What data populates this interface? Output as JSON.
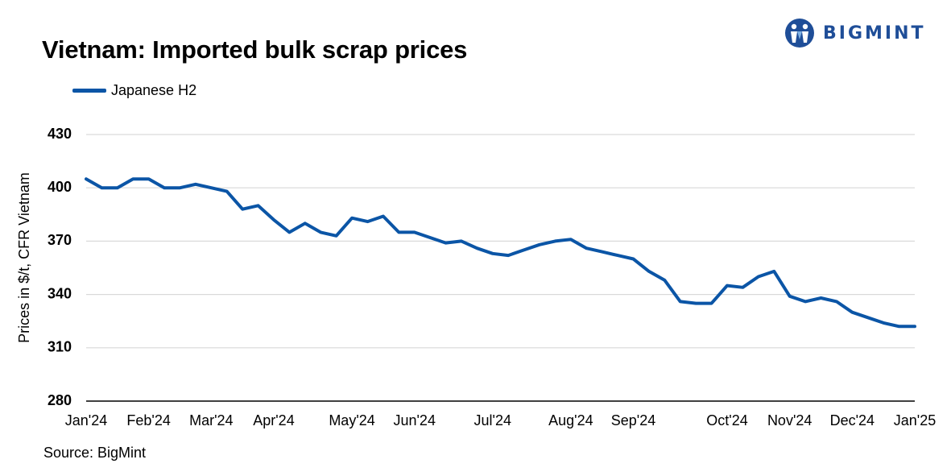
{
  "logo": {
    "text": "BIGMINT",
    "icon": "bigmint-logo-icon",
    "color": "#1f4e98"
  },
  "source": "Source: BigMint",
  "chart_data": {
    "type": "line",
    "title": "Vietnam: Imported bulk scrap prices",
    "ylabel": "Prices in $/t, CFR Vietnam",
    "xlabel": "",
    "ylim": [
      280,
      430
    ],
    "yticks": [
      280,
      310,
      340,
      370,
      400,
      430
    ],
    "grid": "horizontal",
    "legend_position": "top-left",
    "x_tick_labels": [
      "Jan'24",
      "Feb'24",
      "Mar'24",
      "Apr'24",
      "May'24",
      "Jun'24",
      "Jul'24",
      "Aug'24",
      "Sep'24",
      "Oct'24",
      "Nov'24",
      "Dec'24",
      "Jan'25"
    ],
    "x_tick_positions": [
      0,
      4,
      8,
      12,
      17,
      21,
      26,
      31,
      35,
      41,
      45,
      49,
      53
    ],
    "series": [
      {
        "name": "Japanese H2",
        "color": "#0b55a6",
        "values": [
          405,
          400,
          400,
          405,
          405,
          400,
          400,
          402,
          400,
          398,
          388,
          390,
          382,
          375,
          380,
          375,
          373,
          383,
          381,
          384,
          375,
          375,
          372,
          369,
          370,
          366,
          363,
          362,
          365,
          368,
          370,
          371,
          366,
          364,
          362,
          360,
          353,
          348,
          336,
          335,
          335,
          345,
          344,
          350,
          353,
          339,
          336,
          338,
          336,
          330,
          327,
          324,
          322,
          322
        ]
      }
    ]
  }
}
